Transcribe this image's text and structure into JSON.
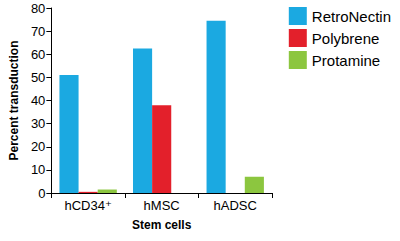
{
  "chart_data": {
    "type": "bar",
    "x_label": "Stem cells",
    "y_label": "Percent transduction",
    "categories": [
      "hCD34⁺",
      "hMSC",
      "hADSC"
    ],
    "series": [
      {
        "name": "RetroNectin",
        "color": "#1ba9e1",
        "values": [
          51,
          62.5,
          74.5
        ]
      },
      {
        "name": "Polybrene",
        "color": "#e3202b",
        "values": [
          0.5,
          38,
          0
        ]
      },
      {
        "name": "Protamine",
        "color": "#8cc63f",
        "values": [
          1.5,
          0,
          7
        ]
      }
    ],
    "ylim": [
      0,
      80
    ],
    "yticks": [
      0,
      10,
      20,
      30,
      40,
      50,
      60,
      70,
      80
    ],
    "grid": false,
    "legend": "right"
  }
}
